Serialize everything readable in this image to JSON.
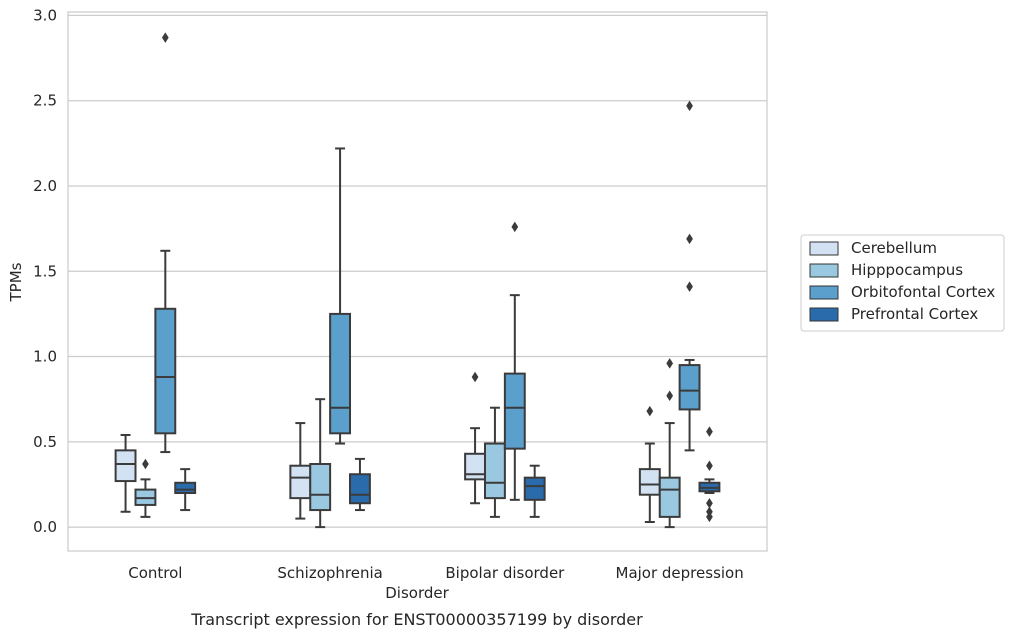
{
  "chart_data": {
    "type": "box",
    "xlabel": "Disorder",
    "ylabel": "TPMs",
    "caption": "Transcript expression for ENST00000357199 by disorder",
    "ylim": [
      -0.14,
      3.02
    ],
    "yticks": [
      "0.0",
      "0.5",
      "1.0",
      "1.5",
      "2.0",
      "2.5",
      "3.0"
    ],
    "ytick_values": [
      0.0,
      0.5,
      1.0,
      1.5,
      2.0,
      2.5,
      3.0
    ],
    "grid": "horizontal",
    "legend_position": "right",
    "categories": [
      "Control",
      "Schizophrenia",
      "Bipolar disorder",
      "Major depression"
    ],
    "series": [
      {
        "name": "Cerebellum",
        "color": "#d2e2f3",
        "boxes": [
          {
            "whislo": 0.09,
            "q1": 0.27,
            "med": 0.37,
            "q3": 0.45,
            "whishi": 0.54,
            "fliers": []
          },
          {
            "whislo": 0.05,
            "q1": 0.17,
            "med": 0.29,
            "q3": 0.36,
            "whishi": 0.61,
            "fliers": []
          },
          {
            "whislo": 0.14,
            "q1": 0.28,
            "med": 0.31,
            "q3": 0.43,
            "whishi": 0.58,
            "fliers": [
              0.88
            ]
          },
          {
            "whislo": 0.03,
            "q1": 0.19,
            "med": 0.25,
            "q3": 0.34,
            "whishi": 0.49,
            "fliers": [
              0.68
            ]
          }
        ]
      },
      {
        "name": "Hipppocampus",
        "color": "#9ac8e0",
        "boxes": [
          {
            "whislo": 0.06,
            "q1": 0.13,
            "med": 0.17,
            "q3": 0.22,
            "whishi": 0.28,
            "fliers": [
              0.37
            ]
          },
          {
            "whislo": 0.0,
            "q1": 0.1,
            "med": 0.19,
            "q3": 0.37,
            "whishi": 0.75,
            "fliers": []
          },
          {
            "whislo": 0.06,
            "q1": 0.17,
            "med": 0.26,
            "q3": 0.49,
            "whishi": 0.7,
            "fliers": []
          },
          {
            "whislo": 0.0,
            "q1": 0.06,
            "med": 0.22,
            "q3": 0.29,
            "whishi": 0.61,
            "fliers": [
              0.77,
              0.96
            ]
          }
        ]
      },
      {
        "name": "Orbitofontal Cortex",
        "color": "#5b9fcd",
        "boxes": [
          {
            "whislo": 0.44,
            "q1": 0.55,
            "med": 0.88,
            "q3": 1.28,
            "whishi": 1.62,
            "fliers": [
              2.87
            ]
          },
          {
            "whislo": 0.49,
            "q1": 0.55,
            "med": 0.7,
            "q3": 1.25,
            "whishi": 2.22,
            "fliers": []
          },
          {
            "whislo": 0.16,
            "q1": 0.46,
            "med": 0.7,
            "q3": 0.9,
            "whishi": 1.36,
            "fliers": [
              1.76
            ]
          },
          {
            "whislo": 0.45,
            "q1": 0.69,
            "med": 0.8,
            "q3": 0.95,
            "whishi": 0.98,
            "fliers": [
              1.41,
              1.69,
              2.47
            ]
          }
        ]
      },
      {
        "name": "Prefrontal Cortex",
        "color": "#2a6bac",
        "boxes": [
          {
            "whislo": 0.1,
            "q1": 0.2,
            "med": 0.22,
            "q3": 0.26,
            "whishi": 0.34,
            "fliers": []
          },
          {
            "whislo": 0.1,
            "q1": 0.14,
            "med": 0.19,
            "q3": 0.31,
            "whishi": 0.4,
            "fliers": []
          },
          {
            "whislo": 0.06,
            "q1": 0.16,
            "med": 0.24,
            "q3": 0.29,
            "whishi": 0.36,
            "fliers": []
          },
          {
            "whislo": 0.2,
            "q1": 0.21,
            "med": 0.23,
            "q3": 0.26,
            "whishi": 0.28,
            "fliers": [
              0.36,
              0.56,
              0.14,
              0.09,
              0.06
            ]
          }
        ]
      }
    ]
  }
}
